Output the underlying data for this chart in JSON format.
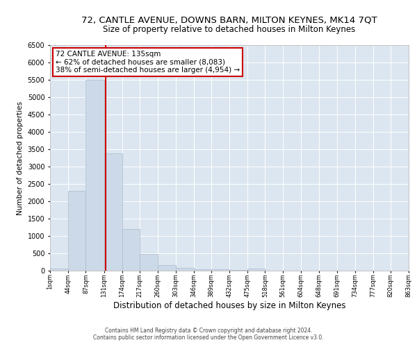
{
  "title1": "72, CANTLE AVENUE, DOWNS BARN, MILTON KEYNES, MK14 7QT",
  "title2": "Size of property relative to detached houses in Milton Keynes",
  "xlabel": "Distribution of detached houses by size in Milton Keynes",
  "ylabel": "Number of detached properties",
  "footnote1": "Contains HM Land Registry data © Crown copyright and database right 2024.",
  "footnote2": "Contains public sector information licensed under the Open Government Licence v3.0.",
  "annotation_line1": "72 CANTLE AVENUE: 135sqm",
  "annotation_line2": "← 62% of detached houses are smaller (8,083)",
  "annotation_line3": "38% of semi-detached houses are larger (4,954) →",
  "bin_edges": [
    1,
    44,
    87,
    131,
    174,
    217,
    260,
    303,
    346,
    389,
    432,
    475,
    518,
    561,
    604,
    648,
    691,
    734,
    777,
    820,
    863
  ],
  "bar_heights": [
    70,
    2300,
    5500,
    3380,
    1200,
    480,
    155,
    75,
    50,
    35,
    15,
    70,
    10,
    5,
    5,
    5,
    3,
    3,
    2,
    2
  ],
  "tick_labels": [
    "1sqm",
    "44sqm",
    "87sqm",
    "131sqm",
    "174sqm",
    "217sqm",
    "260sqm",
    "303sqm",
    "346sqm",
    "389sqm",
    "432sqm",
    "475sqm",
    "518sqm",
    "561sqm",
    "604sqm",
    "648sqm",
    "691sqm",
    "734sqm",
    "777sqm",
    "820sqm",
    "863sqm"
  ],
  "bar_color": "#ccd9e8",
  "bar_edgecolor": "#aabbcc",
  "vline_color": "#cc0000",
  "vline_x": 135,
  "bg_color": "#dce6f0",
  "annotation_box_facecolor": "#ffffff",
  "annotation_box_edgecolor": "#cc0000",
  "ylim": [
    0,
    6500
  ],
  "yticks": [
    0,
    500,
    1000,
    1500,
    2000,
    2500,
    3000,
    3500,
    4000,
    4500,
    5000,
    5500,
    6000,
    6500
  ],
  "grid_color": "#ffffff",
  "title1_fontsize": 9.5,
  "title2_fontsize": 8.5,
  "xlabel_fontsize": 8.5,
  "ylabel_fontsize": 7.5,
  "xtick_fontsize": 6.0,
  "ytick_fontsize": 7.0,
  "footnote_fontsize": 5.5,
  "annotation_fontsize": 7.5
}
